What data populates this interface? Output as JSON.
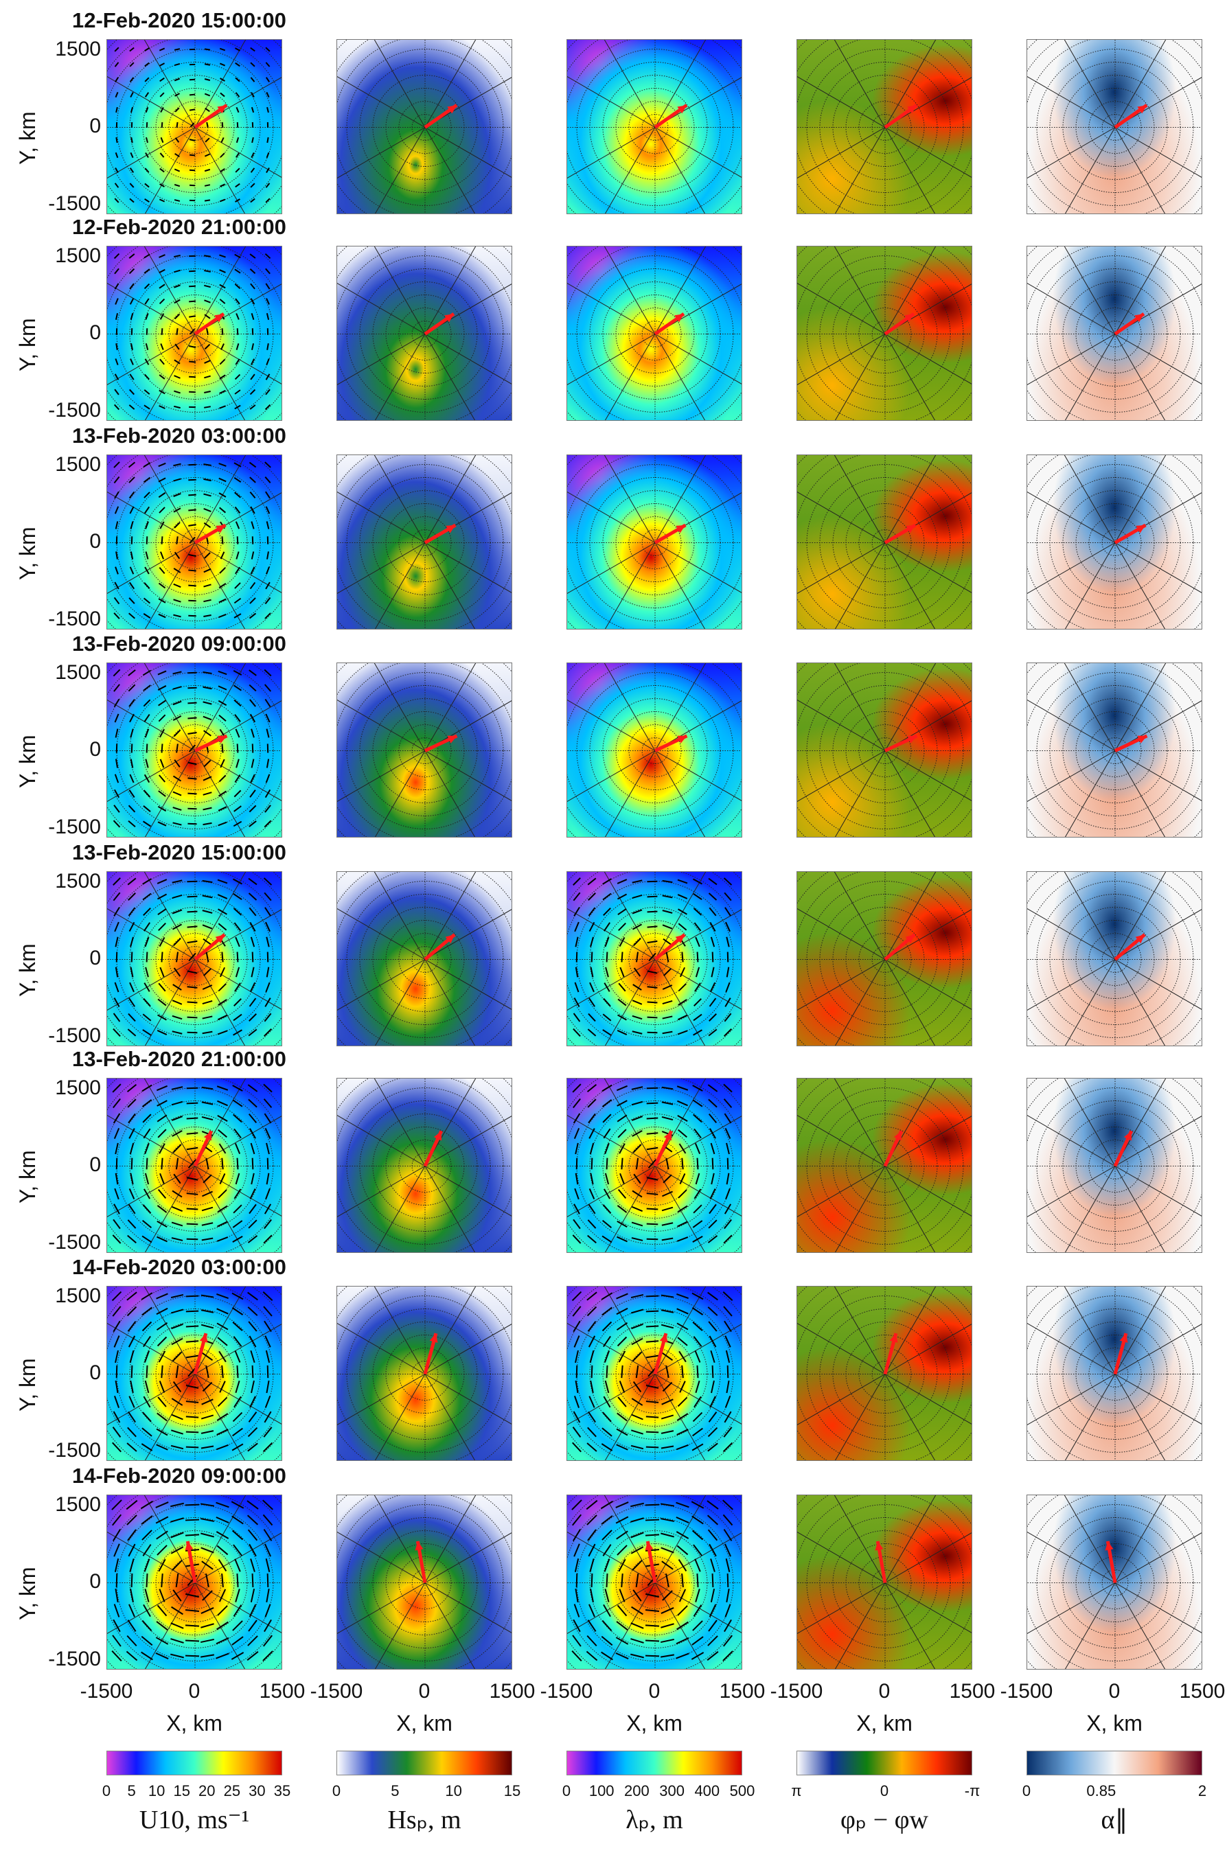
{
  "chart_data": {
    "type": "heatmap",
    "description_rows": "time steps",
    "rows": [
      "12-Feb-2020 15:00:00",
      "12-Feb-2020 21:00:00",
      "13-Feb-2020 03:00:00",
      "13-Feb-2020 09:00:00",
      "13-Feb-2020 15:00:00",
      "13-Feb-2020 21:00:00",
      "14-Feb-2020 03:00:00",
      "14-Feb-2020 09:00:00"
    ],
    "xlabel": "X, km",
    "ylabel": "Y, km",
    "xlim": [
      -1500,
      1500
    ],
    "ylim": [
      -1500,
      1500
    ],
    "xticks": [
      "-1500",
      "0",
      "1500"
    ],
    "yticks": [
      "1500",
      "0",
      "-1500"
    ],
    "grid": "polar dotted",
    "columns": [
      {
        "variable": "U10",
        "label": "U10, ms⁻¹",
        "ticks": [
          "0",
          "5",
          "10",
          "15",
          "20",
          "25",
          "30",
          "35"
        ],
        "range": [
          0,
          35
        ],
        "colormap": [
          "#e23fe0",
          "#1018ff",
          "#00bfff",
          "#3cffc8",
          "#ffff00",
          "#ff8c00",
          "#d40000"
        ]
      },
      {
        "variable": "Hs_p",
        "label": "Hsₚ, m",
        "ticks": [
          "0",
          "5",
          "10",
          "15"
        ],
        "range": [
          0,
          15
        ],
        "colormap": [
          "#ffffff",
          "#2a48c8",
          "#1a8a2a",
          "#ffd000",
          "#ff4000",
          "#600000"
        ]
      },
      {
        "variable": "lambda_p",
        "label": "λₚ, m",
        "ticks": [
          "0",
          "100",
          "200",
          "300",
          "400",
          "500"
        ],
        "range": [
          0,
          500
        ],
        "colormap": [
          "#e23fe0",
          "#1018ff",
          "#00bfff",
          "#3cffc8",
          "#ffff00",
          "#ff8c00",
          "#d40000"
        ]
      },
      {
        "variable": "phi_p - phi_w",
        "label": "φₚ − φw",
        "ticks": [
          "π",
          "0",
          "-π"
        ],
        "range": [
          "π",
          "-π"
        ],
        "colormap": [
          "#ffffff",
          "#1030a0",
          "#108010",
          "#ffb000",
          "#ff3000",
          "#700000"
        ]
      },
      {
        "variable": "alpha_parallel",
        "label": "α∥",
        "ticks": [
          "0",
          "0.85",
          "2"
        ],
        "range": [
          0,
          2
        ],
        "colormap": [
          "#08306b",
          "#6fa8dc",
          "#f7f7f7",
          "#f4a582",
          "#67001f"
        ]
      }
    ],
    "arrow_color": "#ff1a1a"
  }
}
